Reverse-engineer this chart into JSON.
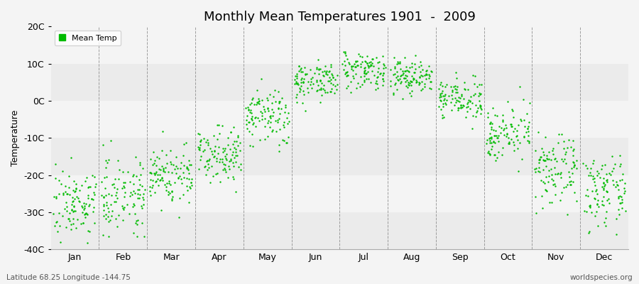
{
  "title": "Monthly Mean Temperatures 1901  -  2009",
  "ylabel": "Temperature",
  "bottom_left_text": "Latitude 68.25 Longitude -144.75",
  "bottom_right_text": "worldspecies.org",
  "legend_label": "Mean Temp",
  "dot_color": "#00bb00",
  "bg_color": "#f4f4f4",
  "band_colors": [
    "#ebebeb",
    "#f4f4f4"
  ],
  "ylim": [
    -40,
    20
  ],
  "yticks": [
    -40,
    -30,
    -20,
    -10,
    0,
    10,
    20
  ],
  "ytick_labels": [
    "-40C",
    "-30C",
    "-20C",
    "-10C",
    "0C",
    "10C",
    "20C"
  ],
  "months": [
    "Jan",
    "Feb",
    "Mar",
    "Apr",
    "May",
    "Jun",
    "Jul",
    "Aug",
    "Sep",
    "Oct",
    "Nov",
    "Dec"
  ],
  "month_means": [
    -27.5,
    -25.0,
    -20.0,
    -14.0,
    -4.5,
    5.5,
    8.5,
    6.5,
    0.5,
    -8.5,
    -19.0,
    -24.5
  ],
  "month_stds": [
    4.5,
    5.0,
    4.0,
    3.5,
    4.0,
    2.5,
    2.5,
    2.5,
    2.5,
    3.5,
    4.5,
    4.5
  ],
  "n_years": 109,
  "dot_size": 3
}
